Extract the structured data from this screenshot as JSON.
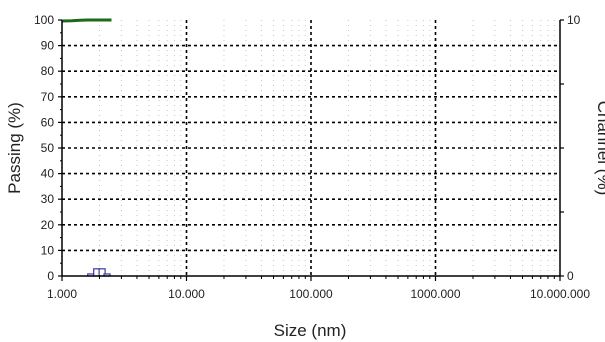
{
  "chart_data": {
    "type": "line",
    "xlabel": "Size (nm)",
    "ylabel_left": "Passing (%)",
    "ylabel_right": "Channel (%)",
    "x_scale": "log",
    "xlim": [
      1,
      10000
    ],
    "x_ticks": [
      {
        "value": 1,
        "label": "1.000"
      },
      {
        "value": 10,
        "label": "10.000"
      },
      {
        "value": 100,
        "label": "100.000"
      },
      {
        "value": 1000,
        "label": "1000.000"
      },
      {
        "value": 10000,
        "label": "10.000.000"
      }
    ],
    "ylim_left": [
      0,
      100
    ],
    "y_ticks_left": [
      0,
      10,
      20,
      30,
      40,
      50,
      60,
      70,
      80,
      90,
      100
    ],
    "ylim_right": [
      0,
      10
    ],
    "y_ticks_right": [
      {
        "value": 0,
        "label": "0"
      },
      {
        "value": 10,
        "label": "10"
      }
    ],
    "grid": true,
    "series": [
      {
        "axis": "left",
        "color": "#1a6b1a",
        "points": [
          [
            1.0,
            99.6
          ],
          [
            1.2,
            99.7
          ],
          [
            1.4,
            99.9
          ],
          [
            1.6,
            100
          ],
          [
            2.5,
            100
          ]
        ]
      },
      {
        "axis": "right",
        "type": "bar",
        "color": "#3a3aa0",
        "points": [
          [
            1.7,
            0.08
          ],
          [
            1.9,
            0.28
          ],
          [
            2.1,
            0.28
          ],
          [
            2.3,
            0.08
          ]
        ]
      }
    ],
    "colors": {
      "axis": "#000000",
      "grid": "#000000",
      "faint_grid": "#c8c8c8"
    }
  }
}
